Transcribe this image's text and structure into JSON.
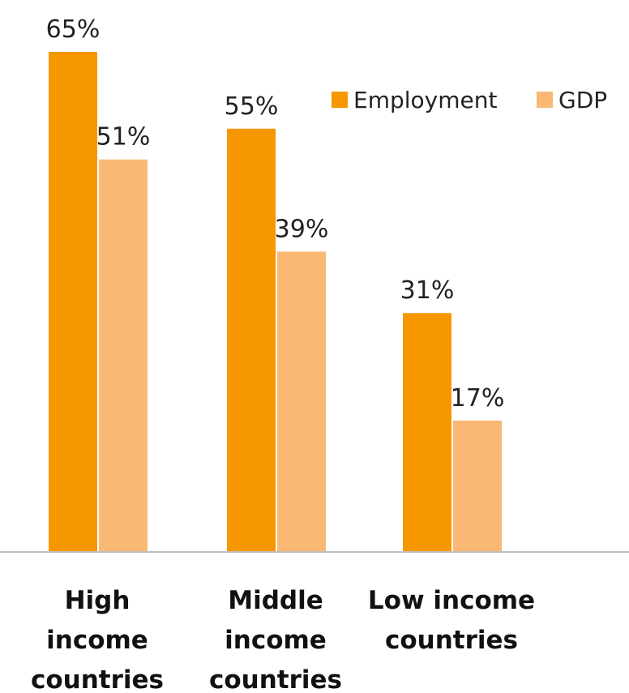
{
  "chart_data": {
    "type": "bar",
    "title": "",
    "xlabel": "",
    "ylabel": "",
    "categories": [
      [
        "High",
        "income",
        "countries"
      ],
      [
        "Middle",
        "income",
        "countries"
      ],
      [
        "Low income",
        "countries"
      ]
    ],
    "series": [
      {
        "name": "Employment",
        "values": [
          65,
          55,
          31
        ],
        "labels": [
          "65%",
          "55%",
          "31%"
        ],
        "color": "#F79700"
      },
      {
        "name": "GDP",
        "values": [
          51,
          39,
          17
        ],
        "labels": [
          "51%",
          "39%",
          "17%"
        ],
        "color": "#F9B874"
      }
    ],
    "ylim": [
      0,
      65
    ],
    "grid": false,
    "legend_position": "top-right",
    "axis_color": "#BFBFBF"
  }
}
